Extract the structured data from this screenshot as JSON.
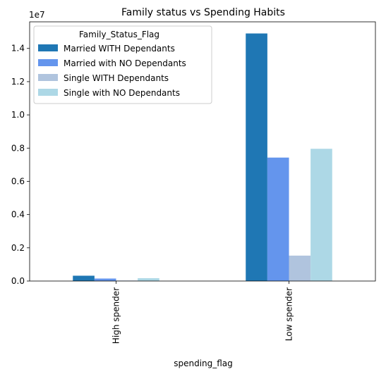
{
  "chart_data": {
    "type": "bar",
    "title": "Family status vs Spending Habits",
    "xlabel": "spending_flag",
    "ylabel": "",
    "y_offset_label": "1e7",
    "categories": [
      "High spender",
      "Low spender"
    ],
    "legend_title": "Family_Status_Flag",
    "legend_position": "top-left",
    "grid": false,
    "ylim": [
      0,
      15600000
    ],
    "y_ticks": [
      0,
      2000000,
      4000000,
      6000000,
      8000000,
      10000000,
      12000000,
      14000000
    ],
    "y_tick_labels": [
      "0.0",
      "0.2",
      "0.4",
      "0.6",
      "0.8",
      "1.0",
      "1.2",
      "1.4"
    ],
    "series": [
      {
        "name": "Married WITH Dependants",
        "color": "#1f77b4",
        "values": [
          320000,
          14900000
        ]
      },
      {
        "name": "Married with NO Dependants",
        "color": "#6495ed",
        "values": [
          150000,
          7430000
        ]
      },
      {
        "name": "Single WITH Dependants",
        "color": "#b0c4de",
        "values": [
          30000,
          1530000
        ]
      },
      {
        "name": "Single with NO Dependants",
        "color": "#add8e6",
        "values": [
          170000,
          7960000
        ]
      }
    ]
  }
}
